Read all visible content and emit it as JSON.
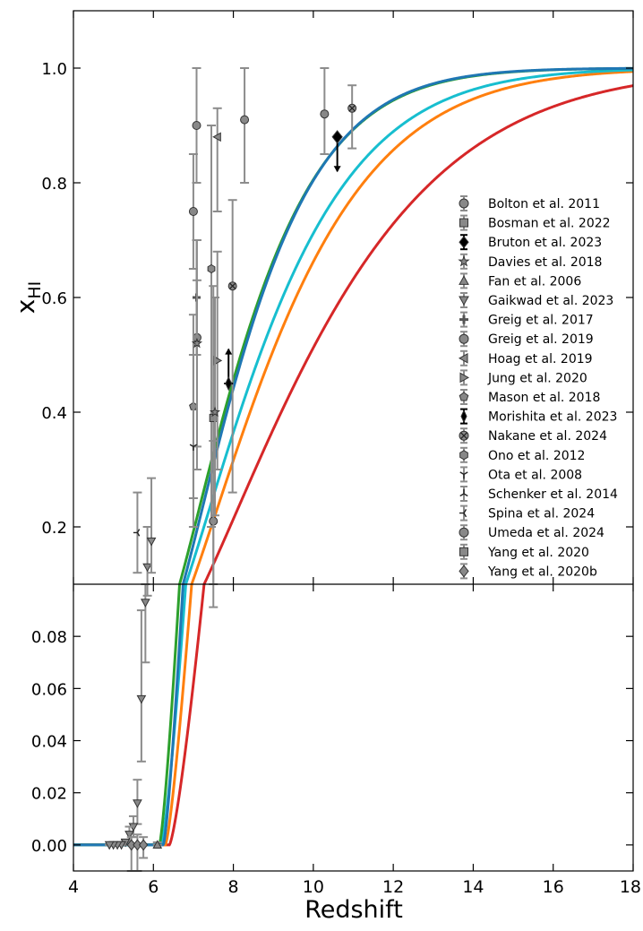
{
  "chart_data": {
    "type": "scatter",
    "xlabel": "Redshift",
    "ylabel": "x",
    "ylabel_sub": "HI",
    "xlim": [
      4,
      18
    ],
    "xticks": [
      "4",
      "6",
      "8",
      "10",
      "12",
      "14",
      "16",
      "18"
    ],
    "panels": [
      {
        "id": "top",
        "ylim": [
          0.1,
          1.1
        ],
        "yticks": [
          "0.2",
          "0.4",
          "0.6",
          "0.8",
          "1.0"
        ]
      },
      {
        "id": "bottom",
        "ylim": [
          -0.01,
          0.1
        ],
        "yticks": [
          "0.00",
          "0.02",
          "0.04",
          "0.06",
          "0.08"
        ]
      }
    ],
    "legend_position": "right",
    "legend": [
      {
        "label": "Bolton et al. 2011",
        "marker": "circle-gray"
      },
      {
        "label": "Bosman et al. 2022",
        "marker": "square-gray"
      },
      {
        "label": "Bruton et al. 2023",
        "marker": "diamond-black"
      },
      {
        "label": "Davies et al. 2018",
        "marker": "star-gray"
      },
      {
        "label": "Fan et al. 2006",
        "marker": "triangle-up-gray"
      },
      {
        "label": "Gaikwad et al. 2023",
        "marker": "triangle-down-gray"
      },
      {
        "label": "Greig et al. 2017",
        "marker": "plus-gray"
      },
      {
        "label": "Greig et al. 2019",
        "marker": "octagon-gray"
      },
      {
        "label": "Hoag et al. 2019",
        "marker": "triangle-left-gray"
      },
      {
        "label": "Jung et al. 2020",
        "marker": "triangle-right-gray"
      },
      {
        "label": "Mason et al. 2018",
        "marker": "pentagon-gray"
      },
      {
        "label": "Morishita et al. 2023",
        "marker": "thin-diamond-black"
      },
      {
        "label": "Nakane et al. 2024",
        "marker": "x-circle-gray"
      },
      {
        "label": "Ono et al. 2012",
        "marker": "hexagon-gray"
      },
      {
        "label": "Ota et al. 2008",
        "marker": "tri-down-gray"
      },
      {
        "label": "Schenker et al. 2014",
        "marker": "tri-up-gray"
      },
      {
        "label": "Spina et al. 2024",
        "marker": "tri-left-gray"
      },
      {
        "label": "Umeda et al. 2024",
        "marker": "circle-gray"
      },
      {
        "label": "Yang et al. 2020",
        "marker": "square-gray"
      },
      {
        "label": "Yang et al. 2020b",
        "marker": "diamond-gray"
      }
    ],
    "model_curves": [
      {
        "color": "#d62728",
        "z_reion": 6.4,
        "z50": 10.1,
        "width": 3.0
      },
      {
        "color": "#ff7f0e",
        "z_reion": 6.3,
        "z50": 9.1,
        "width": 3.0
      },
      {
        "color": "#17becf",
        "z_reion": 6.2,
        "z50": 8.8,
        "width": 3.0
      },
      {
        "color": "#2ca02c",
        "z_reion": 6.15,
        "z50": 8.3,
        "width": 3.0
      },
      {
        "color": "#1f77b4",
        "z_reion": 6.25,
        "z50": 8.35,
        "width": 3.0
      }
    ],
    "points": [
      {
        "series": "Bolton et al. 2011",
        "marker": "circle",
        "x": 7.08,
        "y": 0.9,
        "ylo": 0.8,
        "yhi": 1.0
      },
      {
        "series": "Bolton et al. 2011",
        "marker": "circle",
        "x": 7.0,
        "y": 0.75,
        "ylo": 0.65,
        "yhi": 0.85
      },
      {
        "series": "Bolton et al. 2011",
        "marker": "circle",
        "x": 8.28,
        "y": 0.91,
        "ylo": 0.8,
        "yhi": 1.0
      },
      {
        "series": "Bolton et al. 2011",
        "marker": "circle",
        "x": 10.28,
        "y": 0.92,
        "ylo": 0.85,
        "yhi": 1.0
      },
      {
        "series": "Greig et al. 2019",
        "marker": "octagon",
        "x": 7.09,
        "y": 0.53,
        "ylo": 0.3,
        "yhi": 0.7
      },
      {
        "series": "Ono et al. 2012",
        "marker": "hexagon",
        "x": 7.45,
        "y": 0.65,
        "ylo": 0.2,
        "yhi": 0.9
      },
      {
        "series": "Umeda et al. 2024",
        "marker": "circle",
        "x": 7.5,
        "y": 0.21,
        "ylo": 0.06,
        "yhi": 0.35
      },
      {
        "series": "Bosman et al. 2022",
        "marker": "square",
        "x": 7.5,
        "y": 0.39,
        "ylo": 0.1,
        "yhi": 0.62
      },
      {
        "series": "Hoag et al. 2019",
        "marker": "triangle-left",
        "x": 7.6,
        "y": 0.88,
        "ylo": 0.75,
        "yhi": 0.93
      },
      {
        "series": "Jung et al. 2020",
        "marker": "triangle-right",
        "x": 7.6,
        "y": 0.49,
        "ylo": 0.3,
        "yhi": 0.68
      },
      {
        "series": "Mason et al. 2018",
        "marker": "pentagon",
        "x": 7.0,
        "y": 0.41,
        "ylo": 0.25,
        "yhi": 0.57
      },
      {
        "series": "Greig et al. 2017",
        "marker": "plus",
        "x": 7.08,
        "y": 0.6,
        "ylo": 0.5,
        "yhi": 0.7
      },
      {
        "series": "Davies et al. 2018",
        "marker": "star",
        "x": 7.09,
        "y": 0.52,
        "ylo": 0.34,
        "yhi": 0.63
      },
      {
        "series": "Davies et al. 2018",
        "marker": "star",
        "x": 7.54,
        "y": 0.4,
        "ylo": 0.22,
        "yhi": 0.6
      },
      {
        "series": "Nakane et al. 2024",
        "marker": "x-circle",
        "x": 7.98,
        "y": 0.62,
        "ylo": 0.26,
        "yhi": 0.77
      },
      {
        "series": "Nakane et al. 2024",
        "marker": "x-circle",
        "x": 10.97,
        "y": 0.93,
        "ylo": 0.86,
        "yhi": 0.97
      },
      {
        "series": "Ota et al. 2008",
        "marker": "tri-down",
        "x": 7.0,
        "y": 0.34,
        "ylo": 0.2,
        "yhi": 0.5
      },
      {
        "series": "Spina et al. 2024",
        "marker": "tri-left",
        "x": 5.6,
        "y": 0.19,
        "ylo": 0.12,
        "yhi": 0.26
      },
      {
        "series": "Gaikwad et al. 2023",
        "marker": "triangle-down",
        "x": 5.85,
        "y": 0.13,
        "ylo": 0.08,
        "yhi": 0.2
      },
      {
        "series": "Gaikwad et al. 2023",
        "marker": "triangle-down",
        "x": 5.95,
        "y": 0.175,
        "ylo": 0.12,
        "yhi": 0.285
      },
      {
        "series": "Bruton et al. 2023",
        "marker": "diamond",
        "x": 10.6,
        "y": 0.88,
        "limit": "upper",
        "arrow_to": 0.82
      },
      {
        "series": "Morishita et al. 2023",
        "marker": "thin-diamond",
        "x": 7.88,
        "y": 0.45,
        "limit": "lower",
        "arrow_to": 0.51
      }
    ],
    "bottom_points": [
      {
        "series": "Gaikwad et al. 2023",
        "marker": "triangle-down",
        "x": 5.8,
        "y": 0.093,
        "ylo": 0.07,
        "yhi": 0.1
      },
      {
        "series": "Gaikwad et al. 2023",
        "marker": "triangle-down",
        "x": 5.7,
        "y": 0.056,
        "ylo": 0.032,
        "yhi": 0.09
      },
      {
        "series": "Gaikwad et al. 2023",
        "marker": "triangle-down",
        "x": 5.6,
        "y": 0.016,
        "ylo": 0.008,
        "yhi": 0.025
      },
      {
        "series": "Gaikwad et al. 2023",
        "marker": "triangle-down",
        "x": 5.5,
        "y": 0.007,
        "ylo": 0.003,
        "yhi": 0.011
      },
      {
        "series": "Gaikwad et al. 2023",
        "marker": "triangle-down",
        "x": 5.4,
        "y": 0.004,
        "ylo": 0.001,
        "yhi": 0.007
      },
      {
        "series": "Gaikwad et al. 2023",
        "marker": "triangle-down",
        "x": 5.3,
        "y": 0.001,
        "ylo": 0.0,
        "yhi": 0.002
      },
      {
        "series": "Gaikwad et al. 2023",
        "marker": "triangle-down",
        "x": 5.2,
        "y": 0.0,
        "ylo": 0.0,
        "yhi": 0.001
      },
      {
        "series": "Gaikwad et al. 2023",
        "marker": "triangle-down",
        "x": 5.1,
        "y": 0.0,
        "ylo": 0.0,
        "yhi": 0.0
      },
      {
        "series": "Gaikwad et al. 2023",
        "marker": "triangle-down",
        "x": 5.0,
        "y": 0.0,
        "ylo": 0.0,
        "yhi": 0.0
      },
      {
        "series": "Gaikwad et al. 2023",
        "marker": "triangle-down",
        "x": 4.9,
        "y": 0.0,
        "ylo": 0.0,
        "yhi": 0.0
      },
      {
        "series": "Yang et al. 2020b",
        "marker": "diamond",
        "x": 5.45,
        "y": 0.0,
        "ylo": -0.01,
        "yhi": 0.003
      },
      {
        "series": "Yang et al. 2020b",
        "marker": "diamond",
        "x": 5.6,
        "y": 0.0,
        "ylo": -0.01,
        "yhi": 0.004
      },
      {
        "series": "Yang et al. 2020b",
        "marker": "diamond",
        "x": 5.75,
        "y": 0.0,
        "ylo": -0.005,
        "yhi": 0.003
      },
      {
        "series": "Fan et al. 2006",
        "marker": "triangle-up",
        "x": 6.1,
        "y": 0.0,
        "ylo": 0.0,
        "yhi": 0.001
      }
    ]
  }
}
